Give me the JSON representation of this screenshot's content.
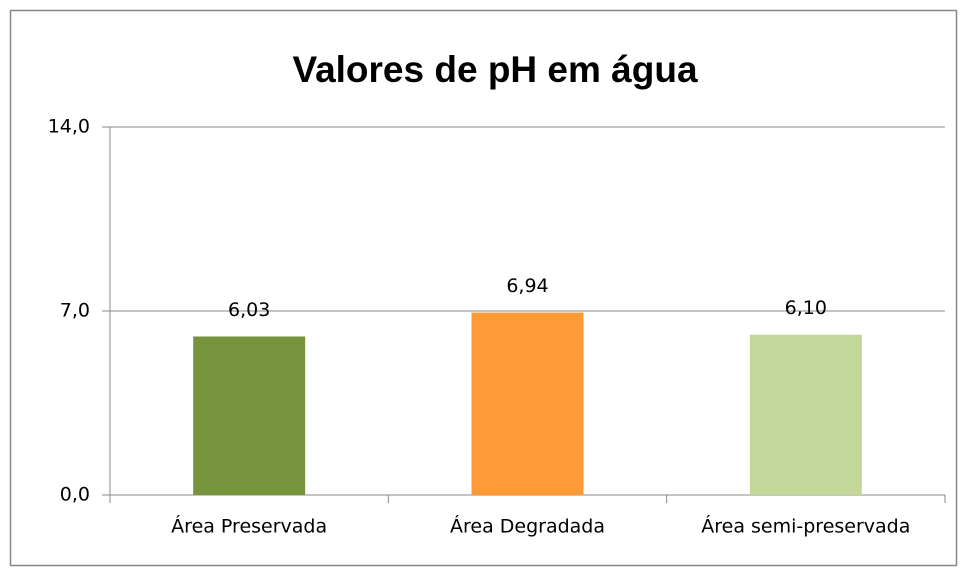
{
  "chart_data": {
    "type": "bar",
    "title": "Valores de pH em água",
    "categories": [
      "Área Preservada",
      "Área Degradada",
      "Área semi-preservada"
    ],
    "values": [
      6.03,
      6.94,
      6.1
    ],
    "value_labels": [
      "6,03",
      "6,94",
      "6,10"
    ],
    "colors": [
      "#77933c",
      "#ff9b37",
      "#c4d79b"
    ],
    "ylim": [
      0,
      14
    ],
    "yticks": [
      {
        "value": 0,
        "label": "0,0"
      },
      {
        "value": 7,
        "label": "7,0"
      },
      {
        "value": 14,
        "label": "14,0"
      }
    ],
    "grid": true
  }
}
